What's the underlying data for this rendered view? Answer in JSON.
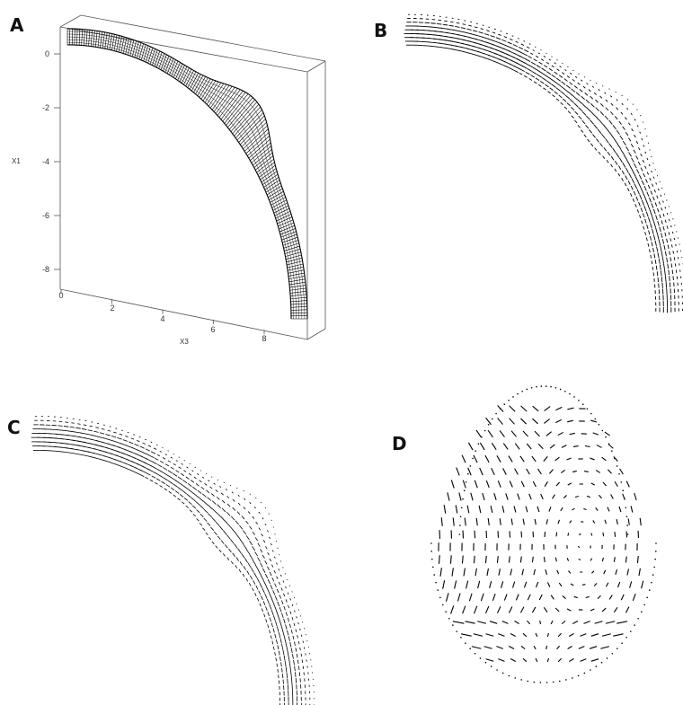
{
  "panels": {
    "a": {
      "letter": "A",
      "x_axis": {
        "label": "X3",
        "ticks": [
          "0",
          "2",
          "4",
          "6",
          "8"
        ]
      },
      "y_axis": {
        "label": "X1",
        "ticks": [
          "0",
          "-2",
          "-4",
          "-6",
          "-8"
        ]
      }
    },
    "b": {
      "letter": "B"
    },
    "c": {
      "letter": "C"
    },
    "d": {
      "letter": "D"
    }
  },
  "colors": {
    "ink": "#000000",
    "frame": "#555555",
    "background": "#ffffff"
  }
}
